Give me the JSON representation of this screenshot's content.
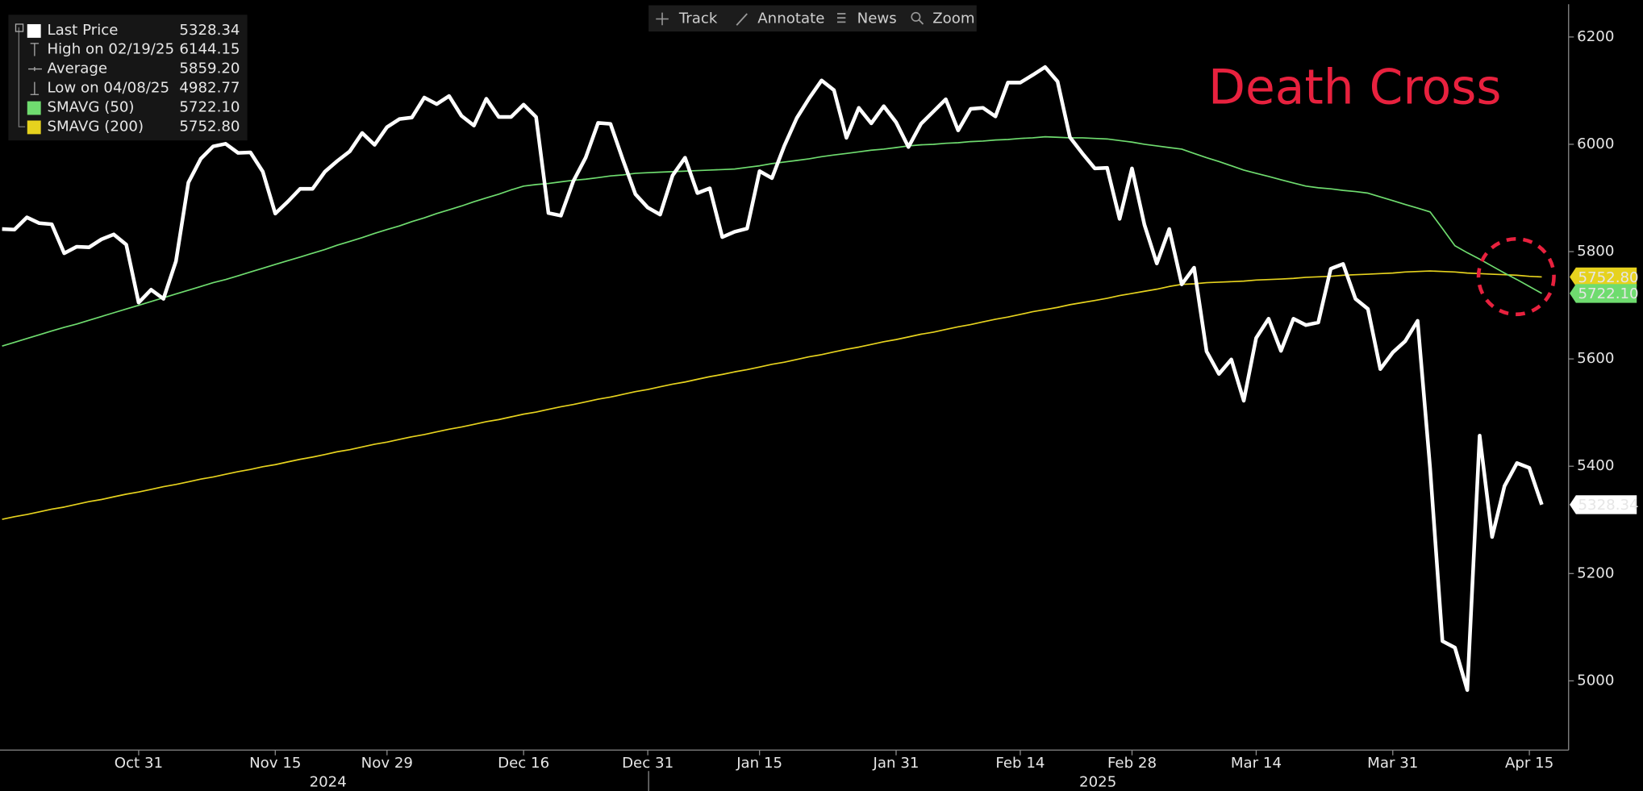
{
  "toolbar": [
    "Track",
    "Annotate",
    "News",
    "Zoom"
  ],
  "chart_data": {
    "type": "line",
    "annotation": "Death Cross",
    "years": [
      "2024",
      "2025"
    ],
    "categories": [
      null,
      null,
      null,
      null,
      null,
      null,
      null,
      null,
      null,
      null,
      null,
      "Oct 31",
      null,
      null,
      null,
      null,
      null,
      null,
      null,
      null,
      null,
      null,
      "Nov 15",
      null,
      null,
      null,
      null,
      null,
      null,
      null,
      null,
      "Nov 29",
      null,
      null,
      null,
      null,
      null,
      null,
      null,
      null,
      null,
      null,
      "Dec 16",
      null,
      null,
      null,
      null,
      null,
      null,
      null,
      null,
      null,
      "Dec 31",
      null,
      null,
      null,
      null,
      null,
      null,
      null,
      null,
      "Jan 15",
      null,
      null,
      null,
      null,
      null,
      null,
      null,
      null,
      null,
      null,
      "Jan 31",
      null,
      null,
      null,
      null,
      null,
      null,
      null,
      null,
      null,
      "Feb 14",
      null,
      null,
      null,
      null,
      null,
      null,
      null,
      null,
      "Feb 28",
      null,
      null,
      null,
      null,
      null,
      null,
      null,
      null,
      null,
      "Mar 14",
      null,
      null,
      null,
      null,
      null,
      null,
      null,
      null,
      null,
      null,
      "Mar 31",
      null,
      null,
      null,
      null,
      null,
      null,
      null,
      null,
      null,
      null,
      "Apr 15",
      null
    ],
    "ylim": [
      4871,
      6261
    ],
    "yticks": [
      5000,
      5200,
      5400,
      5600,
      5800,
      6000,
      6200
    ],
    "series": [
      {
        "name": "Last Price",
        "color": "#ffffff",
        "values": [
          5842,
          5841,
          5864,
          5853,
          5851,
          5797,
          5809,
          5808,
          5823,
          5832,
          5813,
          5705,
          5729,
          5712,
          5782,
          5929,
          5973,
          5996,
          6001,
          5984,
          5985,
          5949,
          5871,
          5893,
          5917,
          5917,
          5949,
          5969,
          5987,
          6021,
          5999,
          6032,
          6047,
          6050,
          6087,
          6075,
          6090,
          6053,
          6035,
          6085,
          6051,
          6051,
          6074,
          6051,
          5872,
          5867,
          5931,
          5975,
          6040,
          6038,
          5971,
          5907,
          5882,
          5869,
          5942,
          5975,
          5909,
          5918,
          5827,
          5837,
          5843,
          5950,
          5937,
          5997,
          6049,
          6086,
          6119,
          6101,
          6012,
          6068,
          6039,
          6071,
          6041,
          5995,
          6038,
          6061,
          6084,
          6026,
          6066,
          6068,
          6052,
          6115,
          6115,
          6129,
          6144.15,
          6117,
          6013,
          5983,
          5955,
          5956,
          5861,
          5955,
          5850,
          5778,
          5842,
          5739,
          5770,
          5614,
          5572,
          5599,
          5522,
          5639,
          5675,
          5615,
          5675,
          5663,
          5668,
          5768,
          5777,
          5712,
          5693,
          5581,
          5612,
          5633,
          5671,
          5397,
          5074,
          5062,
          4982.77,
          5457,
          5268,
          5363,
          5406,
          5397,
          5328.34
        ]
      },
      {
        "name": "SMAVG (50)",
        "color": "#6fdc6f",
        "last_value_label": "5722.10",
        "values": [
          5624,
          5631,
          5638,
          5645,
          5652,
          5659,
          5665,
          5672,
          5679,
          5686,
          5693,
          5700,
          5707,
          5714,
          5721,
          5728,
          5735,
          5742,
          5748,
          5755,
          5762,
          5769,
          5776,
          5783,
          5790,
          5797,
          5804,
          5812,
          5819,
          5826,
          5834,
          5841,
          5848,
          5856,
          5863,
          5871,
          5878,
          5885,
          5893,
          5900,
          5907,
          5915,
          5922,
          5925,
          5927,
          5930,
          5933,
          5935,
          5938,
          5941,
          5943,
          5946,
          5947,
          5948,
          5949,
          5950,
          5951,
          5952,
          5953,
          5954,
          5957,
          5960,
          5964,
          5967,
          5970,
          5973,
          5977,
          5980,
          5983,
          5986,
          5989,
          5991,
          5994,
          5997,
          5999,
          6000,
          6002,
          6003,
          6005,
          6006,
          6008,
          6009,
          6011,
          6012,
          6014,
          6013,
          6012,
          6012,
          6011,
          6010,
          6007,
          6004,
          6000,
          5997,
          5994,
          5991,
          5983,
          5975,
          5968,
          5960,
          5952,
          5946,
          5940,
          5934,
          5928,
          5922,
          5919,
          5917,
          5914,
          5912,
          5909,
          5902,
          5895,
          5888,
          5881,
          5874,
          5843,
          5811,
          5798,
          5786,
          5773,
          5760,
          5748,
          5735,
          5722.1
        ]
      },
      {
        "name": "SMAVG (200)",
        "color": "#e6d21e",
        "last_value_label": "5752.80",
        "values": [
          5301,
          5306,
          5310,
          5315,
          5320,
          5324,
          5329,
          5334,
          5338,
          5343,
          5348,
          5352,
          5357,
          5362,
          5366,
          5371,
          5376,
          5380,
          5385,
          5390,
          5394,
          5399,
          5403,
          5408,
          5413,
          5417,
          5422,
          5427,
          5431,
          5436,
          5441,
          5445,
          5450,
          5455,
          5459,
          5464,
          5469,
          5473,
          5478,
          5483,
          5487,
          5492,
          5497,
          5501,
          5506,
          5511,
          5515,
          5520,
          5525,
          5529,
          5534,
          5539,
          5543,
          5548,
          5553,
          5557,
          5562,
          5567,
          5571,
          5576,
          5580,
          5585,
          5590,
          5594,
          5599,
          5604,
          5608,
          5613,
          5618,
          5622,
          5627,
          5632,
          5636,
          5641,
          5646,
          5650,
          5655,
          5660,
          5664,
          5669,
          5674,
          5678,
          5683,
          5688,
          5692,
          5696,
          5701,
          5705,
          5709,
          5713,
          5718,
          5722,
          5726,
          5730,
          5735,
          5739,
          5740,
          5742,
          5743,
          5744,
          5745,
          5747,
          5748,
          5749,
          5750,
          5752,
          5753,
          5754,
          5756,
          5757,
          5758,
          5759,
          5760,
          5762,
          5763,
          5764,
          5763,
          5762,
          5760,
          5759,
          5758,
          5757,
          5756,
          5754,
          5752.8
        ]
      }
    ],
    "stats": [
      {
        "label": "High on 02/19/25",
        "value": 6144.15
      },
      {
        "label": "Average",
        "value": 5859.2,
        "value_label": "5859.20"
      },
      {
        "label": "Low on 04/08/25",
        "value": 4982.77
      }
    ]
  }
}
